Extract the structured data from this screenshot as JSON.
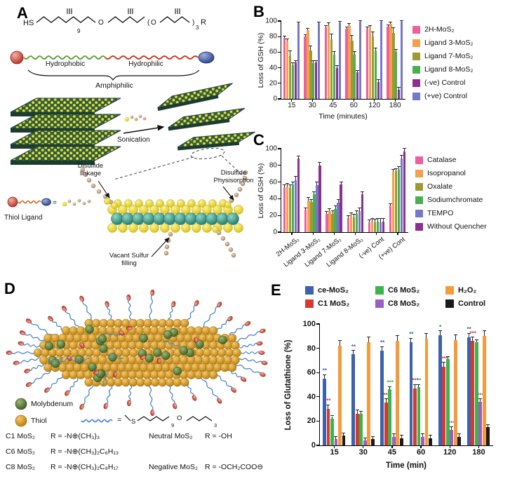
{
  "figure": {
    "background": "#ffffff"
  },
  "panels": {
    "A": {
      "letter": "A",
      "hs": "HS",
      "r": "R",
      "sub9": "9",
      "sub3": "3",
      "o1": "O",
      "o2": "O",
      "paren_open": "(",
      "paren_close": ")",
      "hydrophobic": "Hydrophobic",
      "hydrophilic": "Hydrophilic",
      "amphiphilic": "Amphiphilic",
      "sonication": "Sonication",
      "thiol_ligand": "Thiol Ligand",
      "equals": "=",
      "disulfide_linkage": "Disulfide linkage",
      "disulfide_physisorption": "Disulfide Physisorption",
      "vacant_sulfur": "Vacant Sulfur filling"
    },
    "B": {
      "letter": "B"
    },
    "C": {
      "letter": "C"
    },
    "D": {
      "letter": "D",
      "molybdenum": "Molybdenum",
      "thiol": "Thiol",
      "equals": "=",
      "s_label": "S",
      "sub9": "9",
      "sub3": "3",
      "o": "O",
      "left_rows": [
        {
          "name": "C1 MoS₂",
          "formula": "R = -N⊕(CH₃)₃"
        },
        {
          "name": "C6 MoS₂",
          "formula": "R = -N⊕(CH₃)₂C₆H₁₃"
        },
        {
          "name": "C8 MoS₂",
          "formula": "R = -N⊕(CH₃)₂C₈H₁₇"
        }
      ],
      "right_rows": [
        {
          "name": "Neutral MoS₂",
          "formula": "R = -OH"
        },
        {
          "name": "Negative MoS₂",
          "formula": "R = -OCH₂COO⊖"
        }
      ]
    },
    "E": {
      "letter": "E"
    }
  },
  "chart_data": [
    {
      "id": "B",
      "type": "bar",
      "ylabel": "Loss of GSH (%)",
      "xlabel": "Time (minutes)",
      "ylim": [
        0,
        100
      ],
      "yticks": [
        0,
        20,
        40,
        60,
        80,
        100
      ],
      "grid": false,
      "legend_position": "right",
      "categories": [
        "15",
        "30",
        "45",
        "60",
        "120",
        "180"
      ],
      "series": [
        {
          "name": "2H-MoS₂",
          "color": "#ef5f99",
          "err": 2,
          "values": [
            78,
            80,
            92,
            90,
            90,
            93
          ]
        },
        {
          "name": "Ligand 3-MoS₂",
          "color": "#f5a04b",
          "err": 2,
          "values": [
            75,
            88,
            95,
            94,
            92,
            96
          ]
        },
        {
          "name": "Ligand 7-MoS₂",
          "color": "#9c9b33",
          "err": 6,
          "values": [
            55,
            62,
            77,
            75,
            80,
            85
          ]
        },
        {
          "name": "Ligand 8-MoS₂",
          "color": "#4cae50",
          "err": 3,
          "values": [
            43,
            46,
            57,
            57,
            62,
            60
          ]
        },
        {
          "name": "(-ve) Control",
          "color": "#8c2f90",
          "err": 2,
          "values": [
            47,
            47,
            40,
            34,
            22,
            12
          ]
        },
        {
          "name": "(+ve) Control",
          "color": "#7578c9",
          "err": 1,
          "values": [
            97,
            97,
            98,
            99,
            99,
            99
          ]
        }
      ]
    },
    {
      "id": "C",
      "type": "bar",
      "ylabel": "Loss of GSH (%)",
      "xlabel": "",
      "ylim": [
        0,
        100
      ],
      "yticks": [
        0,
        20,
        40,
        60,
        80,
        100
      ],
      "grid": false,
      "xtick_rotate": true,
      "legend_position": "right",
      "categories": [
        "2H-MoS₂",
        "Ligand 3-MoS₂",
        "Ligand 7-MoS₂",
        "Ligand 8-MoS₂",
        "(-ve) Cont",
        "(+ve) Cont"
      ],
      "series": [
        {
          "name": "Catalase",
          "color": "#ef5f99",
          "err": 2,
          "values": [
            54,
            27,
            22,
            17,
            12,
            32
          ]
        },
        {
          "name": "Isopropanol",
          "color": "#f5a04b",
          "err": 3,
          "values": [
            55,
            38,
            25,
            20,
            13,
            72
          ]
        },
        {
          "name": "Oxalate",
          "color": "#9c9b33",
          "err": 3,
          "values": [
            53,
            36,
            22,
            18,
            12,
            73
          ]
        },
        {
          "name": "Sodiumchromate",
          "color": "#4cae50",
          "err": 3,
          "values": [
            57,
            45,
            28,
            22,
            13,
            75
          ]
        },
        {
          "name": "TEMPO",
          "color": "#7578c9",
          "err": 4,
          "values": [
            62,
            56,
            35,
            25,
            12,
            88
          ]
        },
        {
          "name": "Without Quencher",
          "color": "#8c2f90",
          "err": 3,
          "values": [
            88,
            80,
            57,
            45,
            13,
            97
          ]
        }
      ]
    },
    {
      "id": "E",
      "type": "bar",
      "ylabel": "Loss of Glutathione (%)",
      "xlabel": "Time (min)",
      "ylim": [
        0,
        100
      ],
      "yticks": [
        0,
        20,
        40,
        60,
        80,
        100
      ],
      "grid": false,
      "legend_position": "top",
      "legend_order": [
        "ce-MoS₂",
        "C6 MoS₂",
        "H₂O₂",
        "C1 MoS₂",
        "C8 MoS₂",
        "Control"
      ],
      "categories": [
        "15",
        "30",
        "45",
        "60",
        "120",
        "180"
      ],
      "series": [
        {
          "name": "ce-MoS₂",
          "color": "#3a62ad",
          "err": 3,
          "values": [
            55,
            75,
            78,
            85,
            91,
            89
          ],
          "sig": [
            "**",
            "**",
            "**",
            "**",
            "*",
            "**"
          ]
        },
        {
          "name": "C1 MoS₂",
          "color": "#d63832",
          "err": 3,
          "values": [
            30,
            26,
            35,
            47,
            65,
            86
          ],
          "sig": [
            "**",
            "",
            "***",
            "***",
            "***",
            "***"
          ]
        },
        {
          "name": "C6 MoS₂",
          "color": "#3cb44a",
          "err": 2,
          "values": [
            22,
            26,
            46,
            48,
            71,
            85
          ],
          "sig": [
            "",
            "",
            "***",
            "**",
            "",
            ""
          ]
        },
        {
          "name": "C8 MoS₂",
          "color": "#9a5fc0",
          "err": 2,
          "values": [
            5,
            4,
            7,
            7,
            13,
            36
          ],
          "sig": [
            "",
            "",
            "",
            "",
            "***",
            "***"
          ]
        },
        {
          "name": "H₂O₂",
          "color": "#f59b3c",
          "err": 4,
          "values": [
            82,
            85,
            86,
            88,
            87,
            90
          ],
          "sig": [
            "",
            "",
            "",
            "",
            "",
            ""
          ]
        },
        {
          "name": "Control",
          "color": "#1a1a1a",
          "err": 2,
          "values": [
            8,
            5,
            6,
            6,
            7,
            15
          ],
          "sig": [
            "",
            "",
            "",
            "",
            "",
            ""
          ]
        }
      ]
    }
  ]
}
